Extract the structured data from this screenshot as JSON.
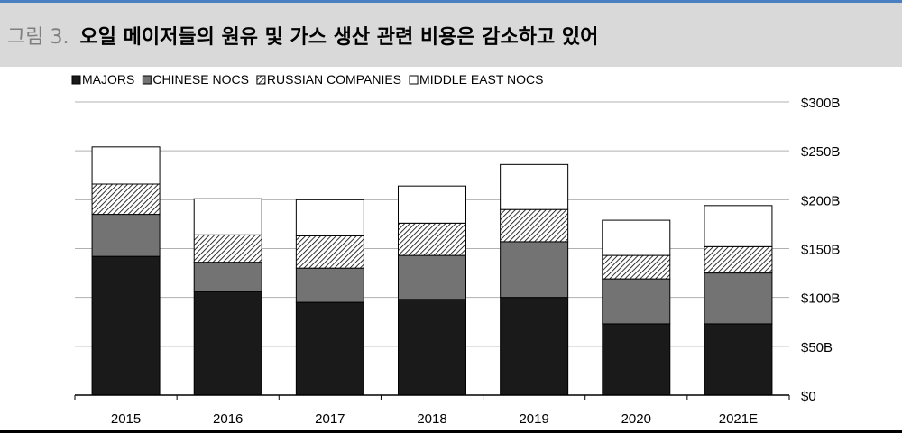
{
  "header": {
    "figure_label": "그림 3.",
    "title": "오일 메이저들의 원유 및 가스 생산 관련 비용은 감소하고 있어"
  },
  "chart_data": {
    "type": "bar",
    "stacked": true,
    "categories": [
      "2015",
      "2016",
      "2017",
      "2018",
      "2019",
      "2020",
      "2021E"
    ],
    "series": [
      {
        "name": "MAJORS",
        "fill": "solid-black",
        "values": [
          142,
          106,
          95,
          98,
          100,
          73,
          73
        ]
      },
      {
        "name": "CHINESE NOCS",
        "fill": "solid-gray",
        "values": [
          43,
          30,
          35,
          45,
          57,
          46,
          52
        ]
      },
      {
        "name": "RUSSIAN COMPANIES",
        "fill": "hatched",
        "values": [
          31,
          28,
          33,
          33,
          33,
          24,
          27
        ]
      },
      {
        "name": "MIDDLE EAST NOCS",
        "fill": "white",
        "values": [
          38,
          37,
          37,
          38,
          46,
          36,
          42
        ]
      }
    ],
    "y_ticks": [
      "$0",
      "$50B",
      "$100B",
      "$150B",
      "$200B",
      "$250B",
      "$300B"
    ],
    "ylim": [
      0,
      300
    ],
    "y_axis_side": "right",
    "grid": true,
    "legend_position": "top-left",
    "colors": {
      "majors": "#1a1a1a",
      "chinese_nocs": "#737373",
      "hatch": "#000000",
      "gridline": "#b0b0b0"
    }
  }
}
